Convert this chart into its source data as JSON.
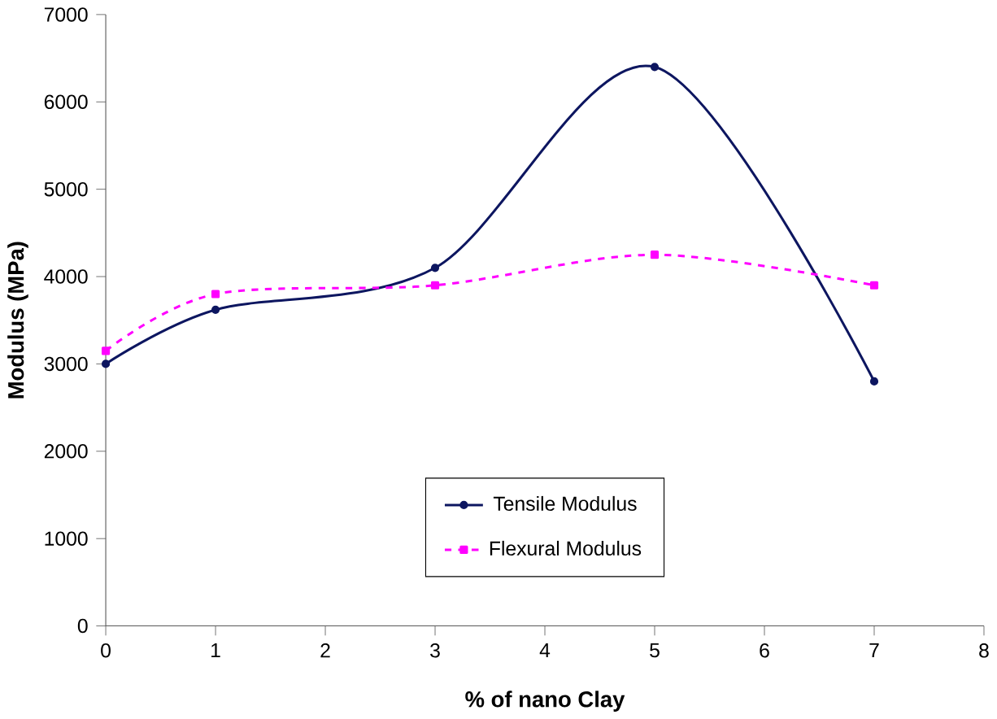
{
  "chart_data": {
    "type": "line",
    "xlabel": "% of nano Clay",
    "ylabel": "Modulus (MPa)",
    "x": [
      0,
      1,
      3,
      5,
      7
    ],
    "series": [
      {
        "name": "Tensile Modulus",
        "color": "#0d1660",
        "values": [
          3000,
          3620,
          4100,
          6400,
          2800
        ],
        "marker": "circle",
        "line_style": "solid"
      },
      {
        "name": "Flexural Modulus",
        "color": "#ff00ff",
        "values": [
          3150,
          3800,
          3900,
          4250,
          3900
        ],
        "marker": "square",
        "line_style": "dashed"
      }
    ],
    "xlim": [
      0,
      8
    ],
    "ylim": [
      0,
      7000
    ],
    "xticks": [
      0,
      1,
      2,
      3,
      4,
      5,
      6,
      7,
      8
    ],
    "yticks": [
      0,
      1000,
      2000,
      3000,
      4000,
      5000,
      6000,
      7000
    ],
    "grid": false,
    "legend": "bottom"
  }
}
